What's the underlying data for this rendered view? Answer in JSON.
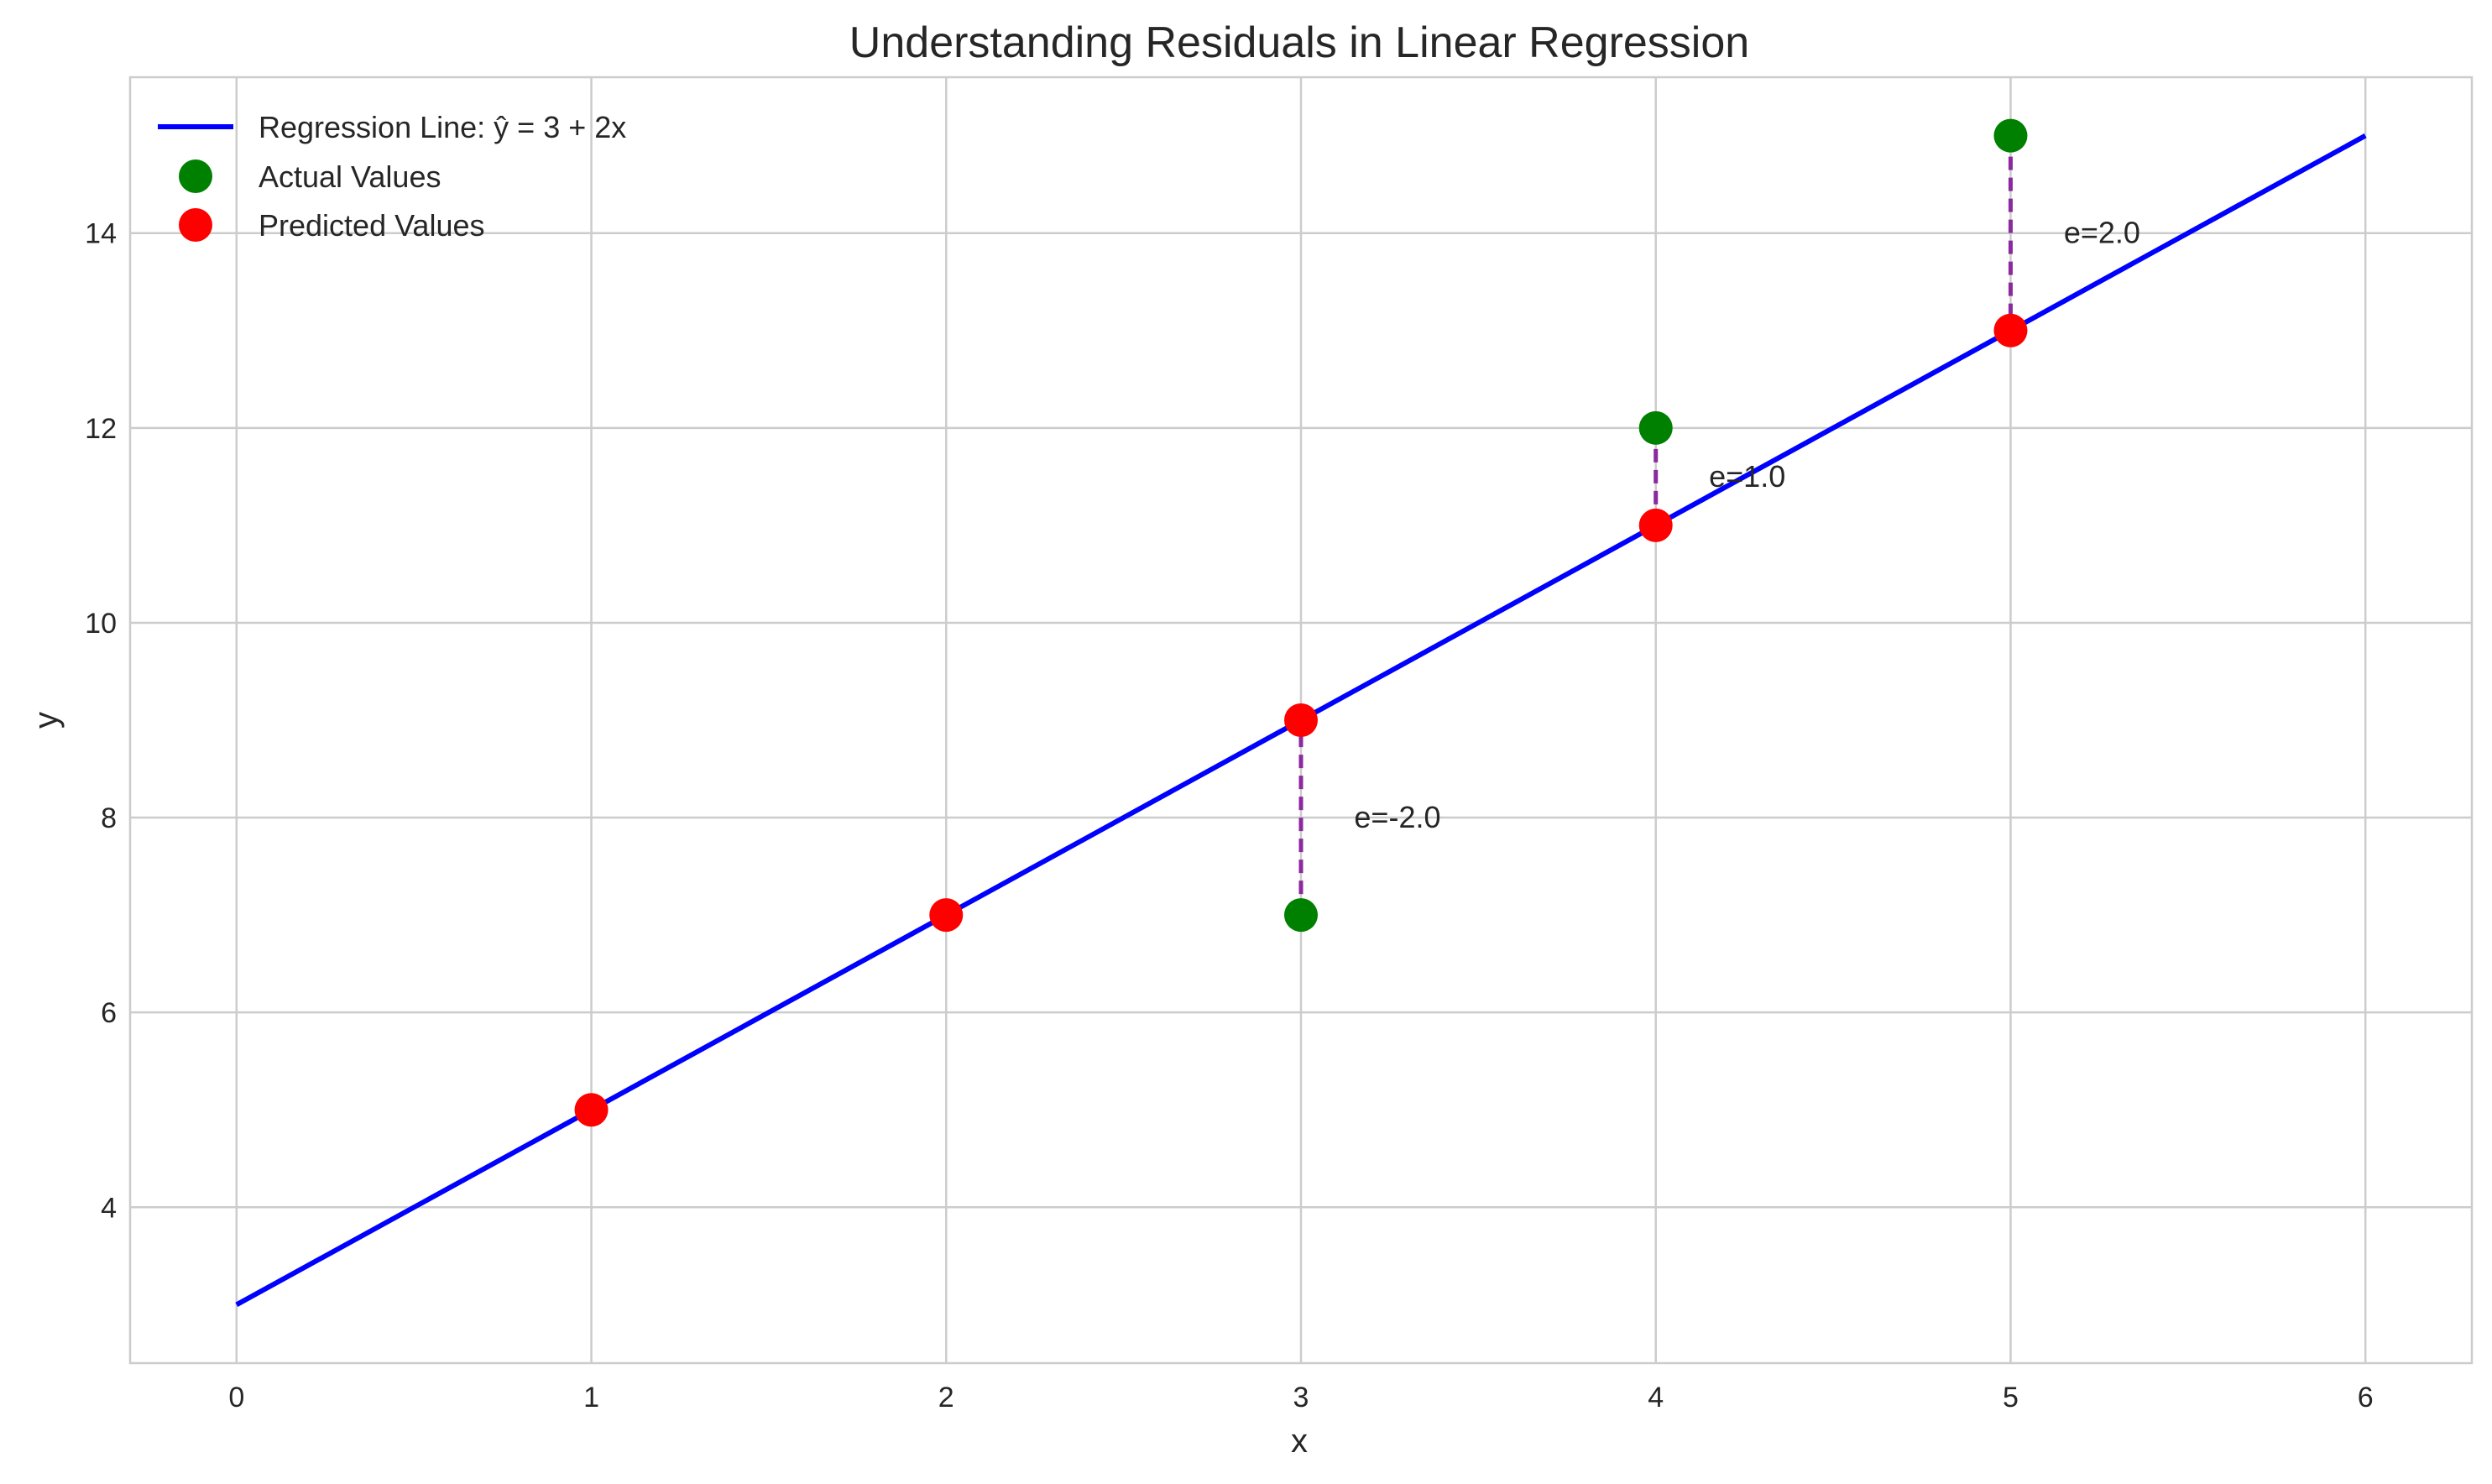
{
  "chart_data": {
    "type": "scatter",
    "title": "Understanding Residuals in Linear Regression",
    "xlabel": "x",
    "ylabel": "y",
    "xlim": [
      -0.3,
      6.3
    ],
    "ylim": [
      2.4,
      15.6
    ],
    "xticks": [
      0,
      1,
      2,
      3,
      4,
      5,
      6
    ],
    "yticks": [
      4,
      6,
      8,
      10,
      12,
      14
    ],
    "grid": true,
    "legend_position": "top-left",
    "regression_line": {
      "name": "Regression Line: ŷ = 3 + 2x",
      "intercept": 3,
      "slope": 2,
      "x_range": [
        0,
        6
      ],
      "color": "#0000ff"
    },
    "series": [
      {
        "name": "Actual Values",
        "color": "#008000",
        "points": [
          [
            3,
            7
          ],
          [
            4,
            12
          ],
          [
            5,
            15
          ]
        ]
      },
      {
        "name": "Predicted Values",
        "color": "#ff0000",
        "points": [
          [
            1,
            5
          ],
          [
            2,
            7
          ],
          [
            3,
            9
          ],
          [
            4,
            11
          ],
          [
            5,
            13
          ]
        ]
      }
    ],
    "residuals": [
      {
        "x": 3,
        "actual": 7,
        "predicted": 9,
        "label": "e=-2.0"
      },
      {
        "x": 4,
        "actual": 12,
        "predicted": 11,
        "label": "e=1.0"
      },
      {
        "x": 5,
        "actual": 15,
        "predicted": 13,
        "label": "e=2.0"
      }
    ],
    "residual_color": "#8b2a9e"
  }
}
